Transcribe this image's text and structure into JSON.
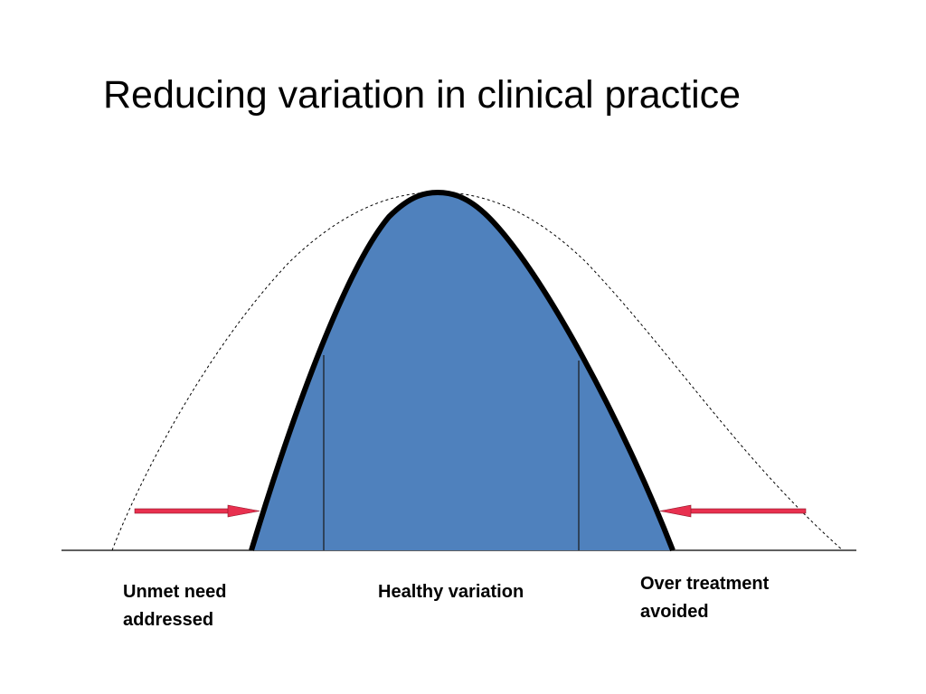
{
  "slide": {
    "title": "Reducing variation in clinical practice"
  },
  "diagram": {
    "fill_color": "#4f81bd",
    "outline_color": "#000000",
    "arrow_color": "#e8304f",
    "baseline_color": "#000000"
  },
  "labels": {
    "unmet_need": {
      "line1": "Unmet need",
      "line2": "addressed"
    },
    "healthy_variation": "Healthy variation",
    "over_treatment": {
      "line1": "Over treatment",
      "line2": "avoided"
    }
  }
}
